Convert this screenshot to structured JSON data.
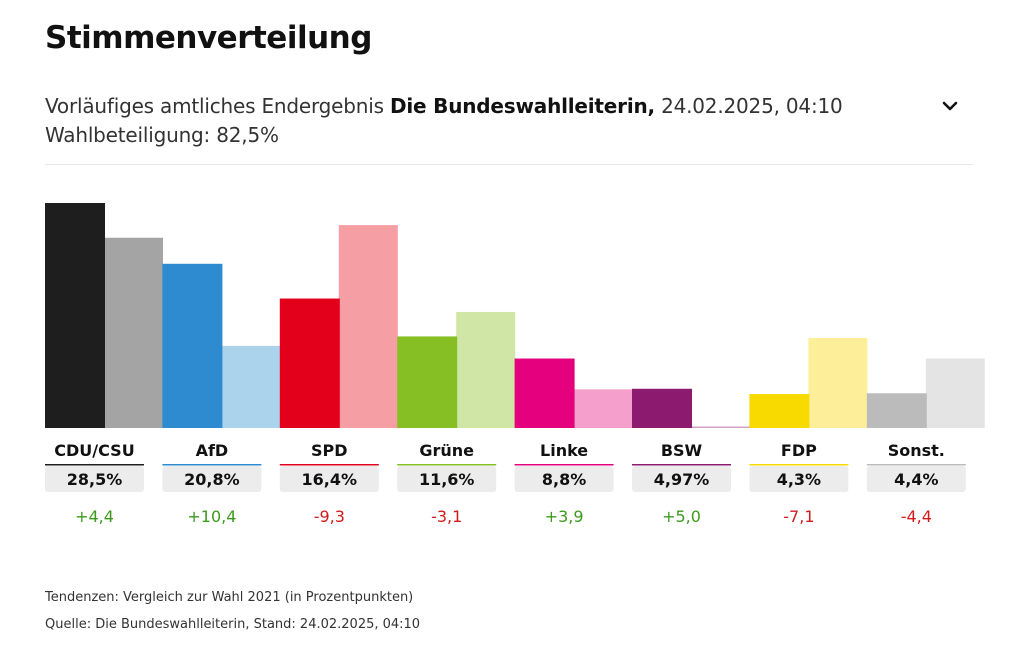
{
  "header": {
    "title": "Stimmenverteilung",
    "subtitle_prefix": "Vorläufiges amtliches Endergebnis ",
    "subtitle_source": "Die Bundeswahlleiterin,",
    "subtitle_date": " 24.02.2025, 04:10",
    "turnout": "Wahlbeteiligung: 82,5%",
    "toggle_icon": "chevron-down-icon"
  },
  "chart_data": {
    "type": "bar",
    "categories": [
      "CDU/CSU",
      "AfD",
      "SPD",
      "Grüne",
      "Linke",
      "BSW",
      "FDP",
      "Sonst."
    ],
    "series": [
      {
        "values": [
          28.5,
          20.8,
          16.4,
          11.6,
          8.8,
          4.97,
          4.3,
          4.4
        ]
      },
      {
        "values": [
          24.1,
          10.4,
          25.7,
          14.7,
          4.9,
          0.0,
          11.4,
          8.8
        ]
      }
    ],
    "value_labels": [
      "28,5%",
      "20,8%",
      "16,4%",
      "11,6%",
      "8,8%",
      "4,97%",
      "4,3%",
      "4,4%"
    ],
    "change_labels": [
      "+4,4",
      "+10,4",
      "-9,3",
      "-3,1",
      "+3,9",
      "+5,0",
      "-7,1",
      "-4,4"
    ],
    "colors_current": [
      "#1e1e1e",
      "#2e8bcf",
      "#e3001b",
      "#86bf24",
      "#e5007d",
      "#8c1a6e",
      "#f8d900",
      "#bbbbbb"
    ],
    "colors_previous": [
      "#a4a4a4",
      "#abd3ec",
      "#f59ea4",
      "#d0e6a6",
      "#f49fcc",
      "#cfa3c4",
      "#fdee99",
      "#e4e4e4"
    ],
    "colors_change": {
      "positive": "#3c9a1e",
      "negative": "#d21b1b"
    },
    "ylim": [
      0,
      28.5
    ],
    "grid": false,
    "legend": "none"
  },
  "footer": {
    "note": "Tendenzen: Vergleich zur Wahl 2021 (in Prozentpunkten)",
    "source": "Quelle: Die Bundeswahlleiterin, Stand: 24.02.2025, 04:10"
  }
}
